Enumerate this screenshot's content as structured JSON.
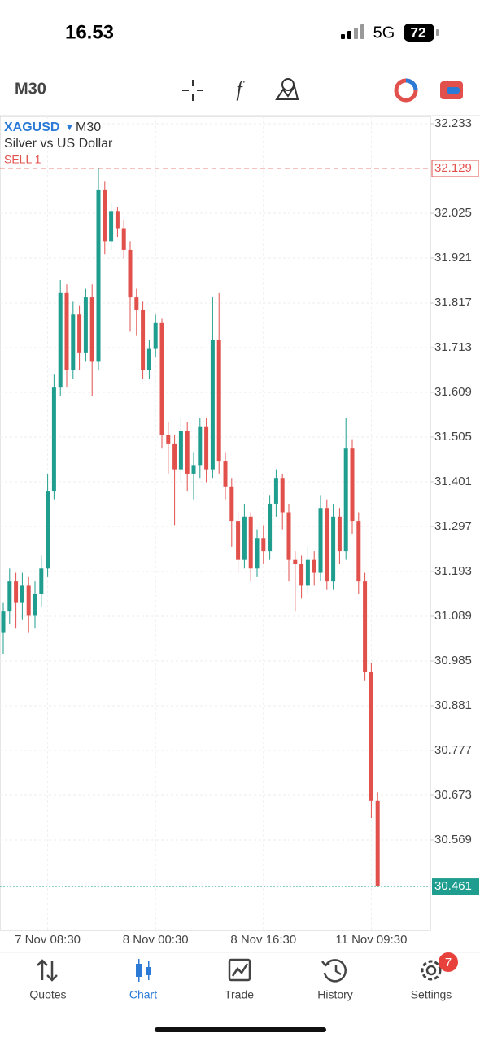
{
  "status_bar": {
    "time": "16.53",
    "network": "5G",
    "battery": "72"
  },
  "toolbar": {
    "timeframe": "M30"
  },
  "chart_data": {
    "type": "candlestick",
    "symbol": "XAGUSD",
    "timeframe": "M30",
    "description": "Silver vs US Dollar",
    "order_label": "SELL 1",
    "sell_price": 32.129,
    "last_price": 30.461,
    "up_color": "#1f9e8f",
    "down_color": "#e2504c",
    "grid": true,
    "ylim": [
      30.359,
      32.25
    ],
    "yticks": [
      32.233,
      32.025,
      31.921,
      31.817,
      31.713,
      31.609,
      31.505,
      31.401,
      31.297,
      31.193,
      31.089,
      30.985,
      30.881,
      30.777,
      30.673,
      30.569
    ],
    "categories": [
      null,
      null,
      null,
      null,
      null,
      null,
      null,
      "7 Nov 08:30",
      null,
      null,
      null,
      null,
      null,
      null,
      null,
      null,
      null,
      null,
      null,
      null,
      null,
      null,
      null,
      null,
      "8 Nov 00:30",
      null,
      null,
      null,
      null,
      null,
      null,
      null,
      null,
      null,
      null,
      null,
      null,
      null,
      null,
      null,
      null,
      "8 Nov 16:30",
      null,
      null,
      null,
      null,
      null,
      null,
      null,
      null,
      null,
      null,
      null,
      null,
      null,
      null,
      null,
      null,
      "11 Nov 09:30",
      null
    ],
    "open": [
      31.05,
      31.1,
      31.17,
      31.12,
      31.16,
      31.09,
      31.14,
      31.2,
      31.38,
      31.62,
      31.84,
      31.66,
      31.79,
      31.7,
      31.83,
      31.68,
      32.08,
      31.96,
      32.03,
      31.99,
      31.94,
      31.83,
      31.8,
      31.66,
      31.71,
      31.77,
      31.51,
      31.49,
      31.43,
      31.52,
      31.42,
      31.44,
      31.53,
      31.43,
      31.73,
      31.45,
      31.39,
      31.31,
      31.22,
      31.32,
      31.2,
      31.27,
      31.24,
      31.35,
      31.41,
      31.33,
      31.22,
      31.21,
      31.16,
      31.22,
      31.19,
      31.34,
      31.17,
      31.32,
      31.24,
      31.48,
      31.31,
      31.17,
      30.96,
      30.66
    ],
    "high": [
      31.12,
      31.2,
      31.19,
      31.19,
      31.18,
      31.17,
      31.23,
      31.42,
      31.65,
      31.87,
      31.86,
      31.82,
      31.81,
      31.85,
      31.86,
      32.13,
      32.1,
      32.05,
      32.04,
      32.01,
      31.96,
      31.85,
      31.82,
      31.73,
      31.79,
      31.78,
      31.54,
      31.51,
      31.55,
      31.54,
      31.47,
      31.55,
      31.55,
      31.83,
      31.84,
      31.47,
      31.41,
      31.33,
      31.35,
      31.33,
      31.29,
      31.3,
      31.37,
      31.43,
      31.42,
      31.35,
      31.24,
      31.23,
      31.25,
      31.24,
      31.37,
      31.36,
      31.35,
      31.34,
      31.55,
      31.5,
      31.33,
      31.19,
      30.98,
      30.68
    ],
    "low": [
      31.0,
      31.07,
      31.06,
      31.08,
      31.05,
      31.06,
      31.11,
      31.18,
      31.36,
      31.6,
      31.62,
      31.64,
      31.66,
      31.68,
      31.6,
      31.66,
      31.93,
      31.94,
      31.97,
      31.92,
      31.75,
      31.74,
      31.64,
      31.64,
      31.69,
      31.48,
      31.42,
      31.3,
      31.4,
      31.38,
      31.36,
      31.41,
      31.4,
      31.41,
      31.42,
      31.36,
      31.25,
      31.19,
      31.2,
      31.17,
      31.18,
      31.21,
      31.22,
      31.32,
      31.29,
      31.17,
      31.1,
      31.13,
      31.14,
      31.16,
      31.17,
      31.15,
      31.15,
      31.21,
      31.22,
      31.28,
      31.14,
      30.94,
      30.62,
      30.46
    ],
    "close": [
      31.1,
      31.17,
      31.12,
      31.16,
      31.09,
      31.14,
      31.2,
      31.38,
      31.62,
      31.84,
      31.66,
      31.79,
      31.7,
      31.83,
      31.68,
      32.08,
      31.96,
      32.03,
      31.99,
      31.94,
      31.83,
      31.8,
      31.66,
      31.71,
      31.77,
      31.51,
      31.49,
      31.43,
      31.52,
      31.42,
      31.44,
      31.53,
      31.43,
      31.73,
      31.45,
      31.39,
      31.31,
      31.22,
      31.32,
      31.2,
      31.27,
      31.24,
      31.35,
      31.41,
      31.33,
      31.22,
      31.21,
      31.16,
      31.22,
      31.19,
      31.34,
      31.17,
      31.32,
      31.24,
      31.48,
      31.31,
      31.17,
      30.96,
      30.66,
      30.461
    ]
  },
  "nav": {
    "items": [
      "Quotes",
      "Chart",
      "Trade",
      "History",
      "Settings"
    ],
    "active": "Chart",
    "badge": "7"
  }
}
